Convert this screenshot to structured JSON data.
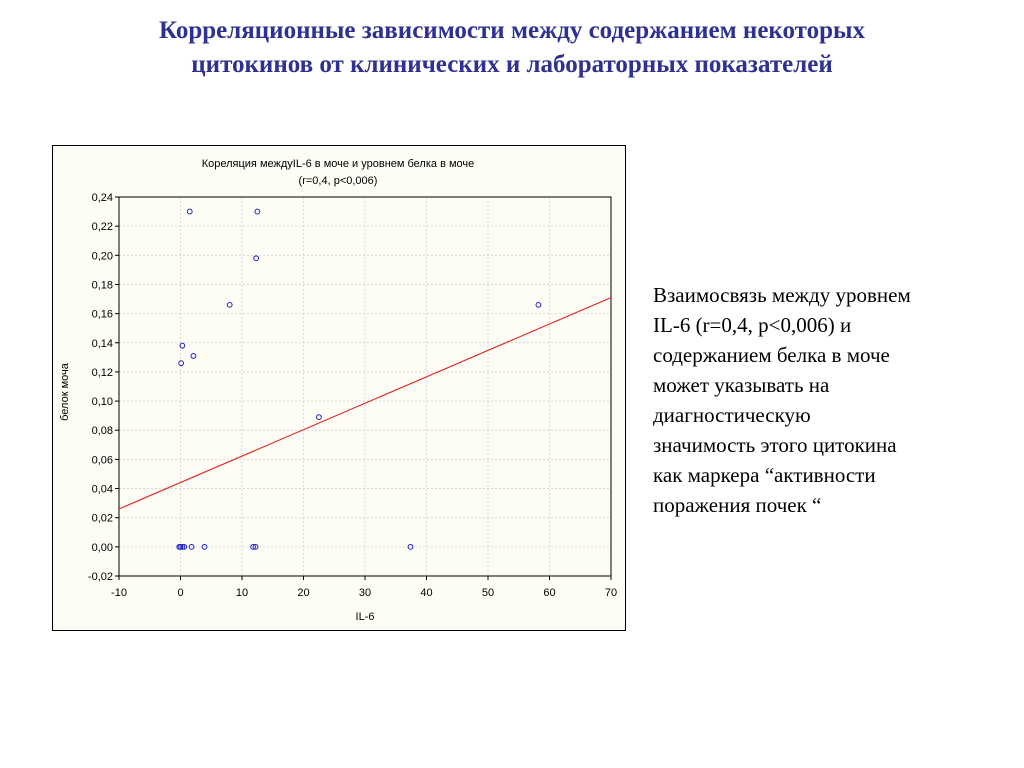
{
  "slide": {
    "title_lines": [
      "Корреляционные зависимости между содержанием некоторых",
      "цитокинов от клинических и лабораторных показателей"
    ],
    "body_lines": [
      "Взаимосвязь между уровнем",
      "IL-6 (r=0,4, p<0,006) и",
      "содержанием белка в моче",
      "может указывать на",
      "диагностическую",
      "значимость этого цитокина",
      "как маркера “активности",
      "поражения почек “"
    ]
  },
  "colors": {
    "title": "#2e3192",
    "points": "#1f1fcc",
    "regression": "#e02020",
    "panel_bg": "#fdfdf5"
  },
  "chart_data": {
    "type": "scatter",
    "title": "Кореляция междуIL-6 в моче и уровнем белка в моче",
    "subtitle": "(r=0,4, p<0,006)",
    "xlabel": "IL-6",
    "ylabel": "белок моча",
    "xlim": [
      -10,
      70
    ],
    "ylim": [
      -0.02,
      0.24
    ],
    "xticks": [
      -10,
      0,
      10,
      20,
      30,
      40,
      50,
      60,
      70
    ],
    "xtick_labels": [
      "-10",
      "0",
      "10",
      "20",
      "30",
      "40",
      "50",
      "60",
      "70"
    ],
    "yticks": [
      -0.02,
      0.0,
      0.02,
      0.04,
      0.06,
      0.08,
      0.1,
      0.12,
      0.14,
      0.16,
      0.18,
      0.2,
      0.22,
      0.24
    ],
    "ytick_labels": [
      "-0,02",
      "0,00",
      "0,02",
      "0,04",
      "0,06",
      "0,08",
      "0,10",
      "0,12",
      "0,14",
      "0,16",
      "0,18",
      "0,20",
      "0,22",
      "0,24"
    ],
    "grid": true,
    "points": [
      {
        "x": 1.5,
        "y": 0.23
      },
      {
        "x": 12.5,
        "y": 0.23
      },
      {
        "x": 12.3,
        "y": 0.198
      },
      {
        "x": 8.0,
        "y": 0.166
      },
      {
        "x": 58.2,
        "y": 0.166
      },
      {
        "x": 0.3,
        "y": 0.138
      },
      {
        "x": 2.1,
        "y": 0.131
      },
      {
        "x": 0.1,
        "y": 0.126
      },
      {
        "x": 22.5,
        "y": 0.089
      },
      {
        "x": 37.4,
        "y": 0.0
      },
      {
        "x": 12.2,
        "y": 0.0
      },
      {
        "x": 11.8,
        "y": 0.0
      },
      {
        "x": 3.9,
        "y": 0.0
      },
      {
        "x": 1.8,
        "y": 0.0
      },
      {
        "x": 0.6,
        "y": 0.0
      },
      {
        "x": 0.3,
        "y": 0.0
      },
      {
        "x": 0.0,
        "y": 0.0
      },
      {
        "x": -0.2,
        "y": 0.0
      }
    ],
    "regression_line": {
      "x": [
        -10,
        70
      ],
      "y": [
        0.026,
        0.171
      ]
    }
  }
}
